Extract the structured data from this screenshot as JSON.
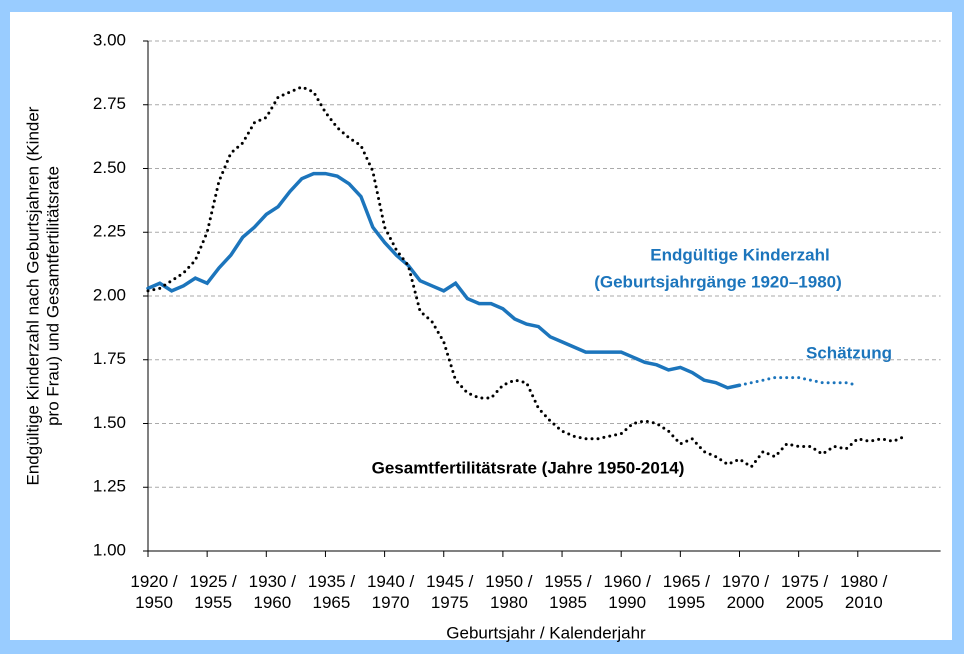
{
  "chart_data": {
    "type": "line",
    "ylabel": [
      "Endgültige Kinderzahl nach Geburtsjahren (Kinder",
      "pro Frau) und Gesamtfertilitätsrate"
    ],
    "xlabel": "Geburtsjahr / Kalenderjahr",
    "annotations": [
      "Endgültige Kinderzahl",
      "(Geburtsjahrgänge 1920–1980)",
      "Schätzung",
      "Gesamtfertilitätsrate (Jahre 1950-2014)"
    ],
    "xlim": [
      1920,
      1987
    ],
    "xticks": [
      {
        "value": 1920,
        "label": "1920 / 1950"
      },
      {
        "value": 1925,
        "label": "1925 / 1955"
      },
      {
        "value": 1930,
        "label": "1930 / 1960"
      },
      {
        "value": 1935,
        "label": "1935 / 1965"
      },
      {
        "value": 1940,
        "label": "1940 / 1970"
      },
      {
        "value": 1945,
        "label": "1945 / 1975"
      },
      {
        "value": 1950,
        "label": "1950 / 1980"
      },
      {
        "value": 1955,
        "label": "1955 / 1985"
      },
      {
        "value": 1960,
        "label": "1960 / 1990"
      },
      {
        "value": 1965,
        "label": "1965 / 1995"
      },
      {
        "value": 1970,
        "label": "1970 / 2000"
      },
      {
        "value": 1975,
        "label": "1975 / 2005"
      },
      {
        "value": 1980,
        "label": "1980 / 2010"
      }
    ],
    "ylim": [
      1,
      3
    ],
    "yticks": [
      {
        "value": 1,
        "label": "1.00"
      },
      {
        "value": 1.25,
        "label": "1.25"
      },
      {
        "value": 1.5,
        "label": "1.50"
      },
      {
        "value": 1.75,
        "label": "1.75"
      },
      {
        "value": 2,
        "label": "2.00"
      },
      {
        "value": 2.25,
        "label": "2.25"
      },
      {
        "value": 2.5,
        "label": "2.50"
      },
      {
        "value": 2.75,
        "label": "2.75"
      },
      {
        "value": 3,
        "label": "3.00"
      }
    ],
    "grid": true,
    "x": [
      1920,
      1921,
      1922,
      1923,
      1924,
      1925,
      1926,
      1927,
      1928,
      1929,
      1930,
      1931,
      1932,
      1933,
      1934,
      1935,
      1936,
      1937,
      1938,
      1939,
      1940,
      1941,
      1942,
      1943,
      1944,
      1945,
      1946,
      1947,
      1948,
      1949,
      1950,
      1951,
      1952,
      1953,
      1954,
      1955,
      1956,
      1957,
      1958,
      1959,
      1960,
      1961,
      1962,
      1963,
      1964,
      1965,
      1966,
      1967,
      1968,
      1969,
      1970,
      1971,
      1972,
      1973,
      1974,
      1975,
      1976,
      1977,
      1978,
      1979,
      1980,
      1981,
      1982,
      1983,
      1984
    ],
    "series": [
      {
        "color": "#1c75bc",
        "dash": "solid",
        "values": [
          2.03,
          2.05,
          2.02,
          2.04,
          2.07,
          2.05,
          2.11,
          2.16,
          2.23,
          2.27,
          2.32,
          2.35,
          2.41,
          2.46,
          2.48,
          2.48,
          2.47,
          2.44,
          2.39,
          2.27,
          2.21,
          2.16,
          2.12,
          2.06,
          2.04,
          2.02,
          2.05,
          1.99,
          1.97,
          1.97,
          1.95,
          1.91,
          1.89,
          1.88,
          1.84,
          1.82,
          1.8,
          1.78,
          1.78,
          1.78,
          1.78,
          1.76,
          1.74,
          1.73,
          1.71,
          1.72,
          1.7,
          1.67,
          1.66,
          1.64,
          1.65,
          null,
          null,
          null,
          null,
          null,
          null,
          null,
          null,
          null,
          null,
          null,
          null,
          null,
          null
        ]
      },
      {
        "color": "#1c75bc",
        "dash": "dotted",
        "values": [
          null,
          null,
          null,
          null,
          null,
          null,
          null,
          null,
          null,
          null,
          null,
          null,
          null,
          null,
          null,
          null,
          null,
          null,
          null,
          null,
          null,
          null,
          null,
          null,
          null,
          null,
          null,
          null,
          null,
          null,
          null,
          null,
          null,
          null,
          null,
          null,
          null,
          null,
          null,
          null,
          null,
          null,
          null,
          null,
          null,
          null,
          null,
          null,
          null,
          null,
          1.65,
          1.66,
          1.67,
          1.68,
          1.68,
          1.68,
          1.67,
          1.66,
          1.66,
          1.66,
          1.65,
          null,
          null,
          null,
          null
        ]
      },
      {
        "color": "#000000",
        "dash": "dotted",
        "values": [
          2.02,
          2.03,
          2.06,
          2.09,
          2.14,
          2.25,
          2.45,
          2.56,
          2.6,
          2.68,
          2.7,
          2.78,
          2.8,
          2.82,
          2.8,
          2.72,
          2.66,
          2.62,
          2.59,
          2.49,
          2.27,
          2.18,
          2.12,
          1.94,
          1.9,
          1.82,
          1.67,
          1.62,
          1.6,
          1.6,
          1.65,
          1.67,
          1.66,
          1.56,
          1.51,
          1.47,
          1.45,
          1.44,
          1.44,
          1.45,
          1.46,
          1.5,
          1.51,
          1.5,
          1.47,
          1.42,
          1.44,
          1.39,
          1.37,
          1.34,
          1.36,
          1.33,
          1.39,
          1.37,
          1.42,
          1.41,
          1.41,
          1.38,
          1.41,
          1.4,
          1.44,
          1.43,
          1.44,
          1.43,
          1.45
        ]
      }
    ]
  }
}
